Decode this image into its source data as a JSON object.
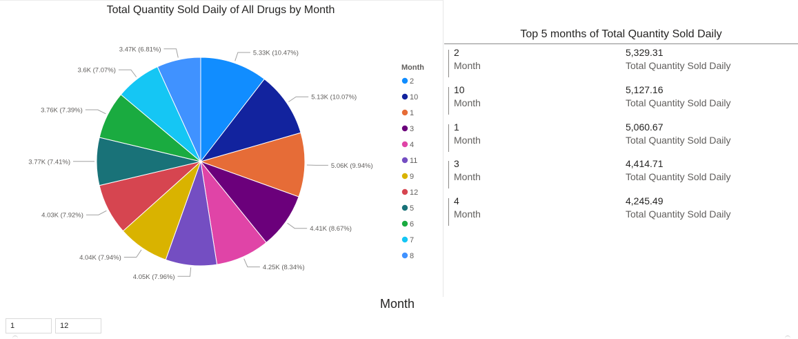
{
  "pie_visual": {
    "title": "Total Quantity Sold Daily of All Drugs by Month"
  },
  "chart_data": {
    "type": "pie",
    "title": "Total Quantity Sold Daily of All Drugs by Month",
    "legend_title": "Month",
    "legend_position": "right",
    "slices": [
      {
        "label": "2",
        "value": 5329.31,
        "display": "5.33K (10.47%)",
        "color": "#118DFF"
      },
      {
        "label": "10",
        "value": 5127.16,
        "display": "5.13K (10.07%)",
        "color": "#12239E"
      },
      {
        "label": "1",
        "value": 5060.67,
        "display": "5.06K (9.94%)",
        "color": "#E66C37"
      },
      {
        "label": "3",
        "value": 4414.71,
        "display": "4.41K (8.67%)",
        "color": "#6B007B"
      },
      {
        "label": "4",
        "value": 4245.49,
        "display": "4.25K (8.34%)",
        "color": "#E044A7"
      },
      {
        "label": "11",
        "value": 4050,
        "display": "4.05K (7.96%)",
        "color": "#744EC2"
      },
      {
        "label": "9",
        "value": 4040,
        "display": "4.04K (7.94%)",
        "color": "#D9B300"
      },
      {
        "label": "12",
        "value": 4030,
        "display": "4.03K (7.92%)",
        "color": "#D64550"
      },
      {
        "label": "5",
        "value": 3770,
        "display": "3.77K (7.41%)",
        "color": "#197278"
      },
      {
        "label": "6",
        "value": 3760,
        "display": "3.76K (7.39%)",
        "color": "#1AAB40"
      },
      {
        "label": "7",
        "value": 3600,
        "display": "3.6K (7.07%)",
        "color": "#15C6F4"
      },
      {
        "label": "8",
        "value": 3470,
        "display": "3.47K (6.81%)",
        "color": "#4092FF"
      }
    ]
  },
  "card_visual": {
    "title": "Top 5 months of Total Quantity Sold Daily",
    "rows": [
      {
        "category_value": "2",
        "category_label": "Month",
        "value": "5,329.31",
        "value_label": "Total Quantity Sold Daily"
      },
      {
        "category_value": "10",
        "category_label": "Month",
        "value": "5,127.16",
        "value_label": "Total Quantity Sold Daily"
      },
      {
        "category_value": "1",
        "category_label": "Month",
        "value": "5,060.67",
        "value_label": "Total Quantity Sold Daily"
      },
      {
        "category_value": "3",
        "category_label": "Month",
        "value": "4,414.71",
        "value_label": "Total Quantity Sold Daily"
      },
      {
        "category_value": "4",
        "category_label": "Month",
        "value": "4,245.49",
        "value_label": "Total Quantity Sold Daily"
      }
    ]
  },
  "slicer": {
    "title": "Month",
    "from_value": "1",
    "to_value": "12"
  }
}
